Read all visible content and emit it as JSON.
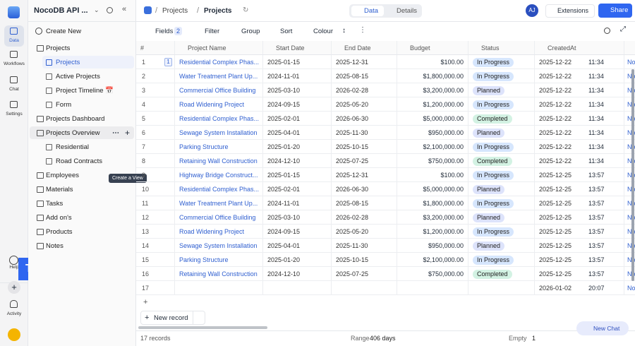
{
  "rail": {
    "items": [
      "Data",
      "Workflows",
      "Chat",
      "Settings"
    ],
    "help": "Help",
    "activity": "Activity",
    "badge": "Table"
  },
  "sidebar": {
    "base": "NocoDB API ...",
    "create": "Create New",
    "tooltip": "Create a View",
    "tree": [
      {
        "label": "Projects",
        "children": [
          "Projects",
          "Active Projects",
          "Project Timeline 📅",
          "Form"
        ]
      },
      {
        "label": "Projects Dashboard"
      },
      {
        "label": "Projects Overview",
        "children": [
          "Residential",
          "Road Contracts"
        ]
      },
      {
        "label": "Employees"
      },
      {
        "label": "Materials"
      },
      {
        "label": "Tasks"
      },
      {
        "label": "Add on's"
      },
      {
        "label": "Products"
      },
      {
        "label": "Notes"
      }
    ]
  },
  "topbar": {
    "crumbs": [
      "Projects",
      "Projects"
    ],
    "tabs": [
      "Data",
      "Details"
    ],
    "avatar": "AJ",
    "extensions": "Extensions",
    "share": "Share"
  },
  "toolbar": {
    "fields": "Fields",
    "fields_count": 2,
    "filter": "Filter",
    "group": "Group",
    "sort": "Sort",
    "colour": "Colour"
  },
  "table": {
    "columns": [
      "#",
      "Project Name",
      "Start Date",
      "End Date",
      "Budget",
      "Status",
      "CreatedAt"
    ],
    "status_colors": {
      "In Progress": "#d6e6fd",
      "Planned": "#dde3fb",
      "Completed": "#d3f2e3"
    },
    "row_1_comments": 1,
    "rows": [
      [
        1,
        "Residential Complex Phas...",
        "2025-01-15",
        "2025-12-31",
        "$100.00",
        "In Progress",
        "2025-12-22",
        "11:34",
        "No"
      ],
      [
        2,
        "Water Treatment Plant Up...",
        "2024-11-01",
        "2025-08-15",
        "$1,800,000.00",
        "In Progress",
        "2025-12-22",
        "11:34",
        "No"
      ],
      [
        3,
        "Commercial Office Building",
        "2025-03-10",
        "2026-02-28",
        "$3,200,000.00",
        "Planned",
        "2025-12-22",
        "11:34",
        "No"
      ],
      [
        4,
        "Road Widening Project",
        "2024-09-15",
        "2025-05-20",
        "$1,200,000.00",
        "In Progress",
        "2025-12-22",
        "11:34",
        "No"
      ],
      [
        5,
        "Residential Complex Phas...",
        "2025-02-01",
        "2026-06-30",
        "$5,000,000.00",
        "Completed",
        "2025-12-22",
        "11:34",
        "No"
      ],
      [
        6,
        "Sewage System Installation",
        "2025-04-01",
        "2025-11-30",
        "$950,000.00",
        "Planned",
        "2025-12-22",
        "11:34",
        "No"
      ],
      [
        7,
        "Parking Structure",
        "2025-01-20",
        "2025-10-15",
        "$2,100,000.00",
        "In Progress",
        "2025-12-22",
        "11:34",
        "No"
      ],
      [
        8,
        "Retaining Wall Construction",
        "2024-12-10",
        "2025-07-25",
        "$750,000.00",
        "Completed",
        "2025-12-22",
        "11:34",
        "No"
      ],
      [
        9,
        "Highway Bridge Construct...",
        "2025-01-15",
        "2025-12-31",
        "$100.00",
        "In Progress",
        "2025-12-25",
        "13:57",
        "No"
      ],
      [
        10,
        "Residential Complex Phas...",
        "2025-02-01",
        "2026-06-30",
        "$5,000,000.00",
        "Planned",
        "2025-12-25",
        "13:57",
        "No"
      ],
      [
        11,
        "Water Treatment Plant Up...",
        "2024-11-01",
        "2025-08-15",
        "$1,800,000.00",
        "In Progress",
        "2025-12-25",
        "13:57",
        "No"
      ],
      [
        12,
        "Commercial Office Building",
        "2025-03-10",
        "2026-02-28",
        "$3,200,000.00",
        "Planned",
        "2025-12-25",
        "13:57",
        "No"
      ],
      [
        13,
        "Road Widening Project",
        "2024-09-15",
        "2025-05-20",
        "$1,200,000.00",
        "In Progress",
        "2025-12-25",
        "13:57",
        "No"
      ],
      [
        14,
        "Sewage System Installation",
        "2025-04-01",
        "2025-11-30",
        "$950,000.00",
        "Planned",
        "2025-12-25",
        "13:57",
        "No"
      ],
      [
        15,
        "Parking Structure",
        "2025-01-20",
        "2025-10-15",
        "$2,100,000.00",
        "In Progress",
        "2025-12-25",
        "13:57",
        "No"
      ],
      [
        16,
        "Retaining Wall Construction",
        "2024-12-10",
        "2025-07-25",
        "$750,000.00",
        "Completed",
        "2025-12-25",
        "13:57",
        "No"
      ],
      [
        17,
        null,
        null,
        null,
        null,
        null,
        "2026-01-02",
        "20:07",
        "No"
      ]
    ]
  },
  "footer": {
    "new_record": "New record",
    "records": "17 records",
    "range_label": "Range",
    "range_value": "406 days",
    "empty_label": "Empty",
    "empty_value": 1,
    "new_chat": "New Chat"
  }
}
